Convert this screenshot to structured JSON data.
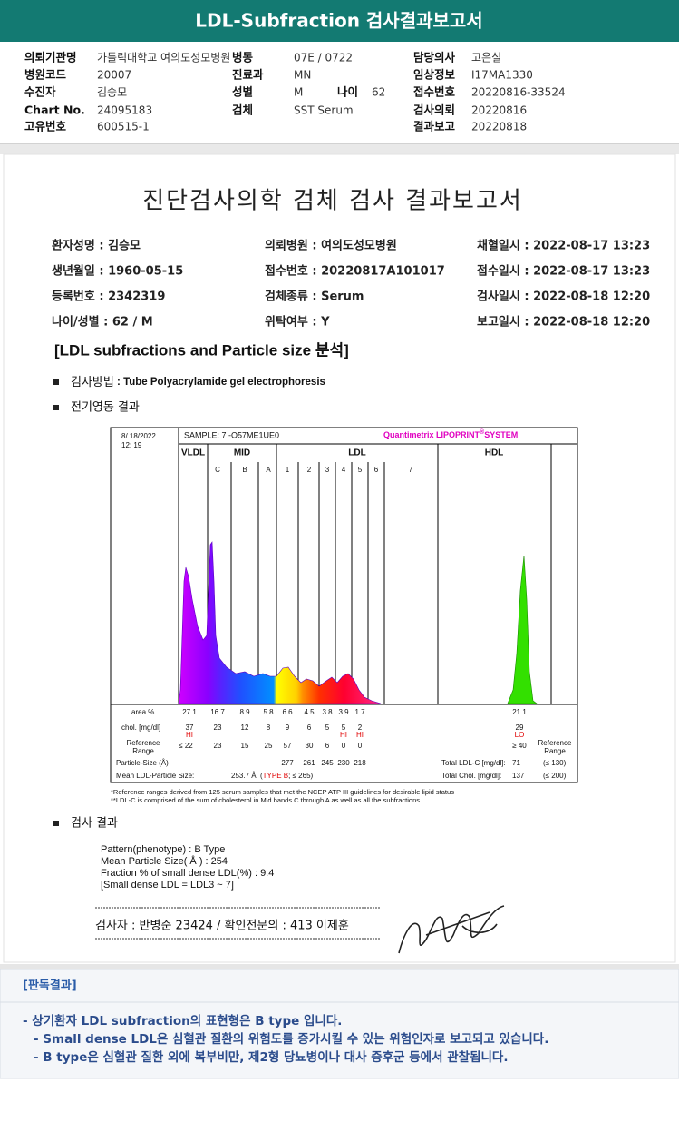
{
  "header": {
    "title": "LDL-Subfraction 검사결과보고서"
  },
  "info": {
    "rows": [
      [
        {
          "label": "의뢰기관명",
          "value": "가톨릭대학교 여의도성모병원"
        },
        {
          "label": "병동",
          "value": "07E / 0722"
        },
        {
          "label": "담당의사",
          "value": "고은실"
        }
      ],
      [
        {
          "label": "병원코드",
          "value": "20007"
        },
        {
          "label": "진료과",
          "value": "MN"
        },
        {
          "label": "임상정보",
          "value": "I17MA1330"
        }
      ],
      [
        {
          "label": "수진자",
          "value": "김승모"
        },
        {
          "label": "성별",
          "value": "M"
        },
        {
          "label": "나이",
          "value": "62"
        },
        {
          "label": "접수번호",
          "value": "20220816-33524"
        }
      ],
      [
        {
          "label": "Chart No.",
          "value": "24095183"
        },
        {
          "label": "검체",
          "value": "SST Serum"
        },
        {
          "label": "검사의뢰",
          "value": "20220816"
        }
      ],
      [
        {
          "label": "고유번호",
          "value": "600515-1"
        },
        {
          "label": "결과보고",
          "value": "20220818"
        }
      ]
    ]
  },
  "report": {
    "title": "진단검사의학 검체 검사 결과보고서",
    "fields": [
      [
        "환자성명 : 김승모",
        "의뢰병원 : 여의도성모병원",
        "채혈일시 : 2022-08-17 13:23"
      ],
      [
        "생년월일 : 1960-05-15",
        "접수번호 : 20220817A101017",
        "접수일시 : 2022-08-17 13:23"
      ],
      [
        "등록번호 : 2342319",
        "검체종류 : Serum",
        "검사일시 : 2022-08-18 12:20"
      ],
      [
        "나이/성별 : 62 / M",
        "위탁여부 : Y",
        "보고일시 : 2022-08-18 12:20"
      ]
    ],
    "section": "[LDL subfractions and Particle size 분석]",
    "method": {
      "label": "검사방법",
      "text": " : Tube Polyacrylamide gel electrophoresis"
    },
    "electro_heading": "전기영동 결과",
    "result_heading": "검사 결과",
    "results": [
      "Pattern(phenotype) : B Type",
      "Mean Particle Size( Å ) : 254",
      "Fraction % of small dense LDL(%) : 9.4",
      "[Small dense LDL = LDL3 ~ 7]"
    ],
    "signature_line": "검사자 : 반병준  23424  /  확인전문의 : 413  이제훈"
  },
  "electrophoresis": {
    "date": "8/ 18/2022",
    "time": "12: 19",
    "sample": "SAMPLE:   7 -O57ME1UE0",
    "brand": "Quantimetrix LIPOPRINT",
    "reg": "®",
    "system": "SYSTEM",
    "groups": [
      "VLDL",
      "MID",
      "LDL",
      "HDL"
    ],
    "row_labels": {
      "area": "area.%",
      "chol": "chol. [mg/dl]",
      "ref": [
        "Reference",
        "Range"
      ],
      "size": "Particle-Size (Å)",
      "mean": "Mean LDL-Particle Size:"
    },
    "columns": [
      {
        "label": null,
        "area": 27.1,
        "chol": 37,
        "flag": "HI",
        "ref": "≤ 22",
        "size": null
      },
      {
        "label": "C",
        "area": 16.7,
        "chol": 23,
        "flag": null,
        "ref": 23,
        "size": null
      },
      {
        "label": "B",
        "area": 8.9,
        "chol": 12,
        "flag": null,
        "ref": 15,
        "size": null
      },
      {
        "label": "A",
        "area": 5.8,
        "chol": 8,
        "flag": null,
        "ref": 25,
        "size": null
      },
      {
        "label": "1",
        "area": 6.6,
        "chol": 9,
        "flag": null,
        "ref": 57,
        "size": 277
      },
      {
        "label": "2",
        "area": 4.5,
        "chol": 6,
        "flag": null,
        "ref": 30,
        "size": 261
      },
      {
        "label": "3",
        "area": 3.8,
        "chol": 5,
        "flag": null,
        "ref": 6,
        "size": 245
      },
      {
        "label": "4",
        "area": 3.9,
        "chol": 5,
        "flag": "HI",
        "ref": 0,
        "size": 230
      },
      {
        "label": "5",
        "area": 1.7,
        "chol": 2,
        "flag": "HI",
        "ref": 0,
        "size": 218
      },
      {
        "label": "6",
        "area": null,
        "chol": null,
        "flag": null,
        "ref": null,
        "size": null
      },
      {
        "label": "7",
        "area": null,
        "chol": null,
        "flag": null,
        "ref": null,
        "size": null
      },
      {
        "label": null,
        "area": 21.1,
        "chol": 29,
        "flag": "LO",
        "ref": "≥ 40",
        "size": null
      }
    ],
    "mean_value": "253.7 Å",
    "mean_note": [
      "(",
      "TYPE B",
      "; ≤ 265)"
    ],
    "totals": [
      {
        "label": "Total LDL-C [mg/dl]:",
        "value": 71,
        "limit": "(≤ 130)"
      },
      {
        "label": "Total Chol. [mg/dl]:",
        "value": 137,
        "limit": "(≤ 200)"
      }
    ],
    "footnotes": [
      "*Reference ranges derived from 125 serum samples that met the NCEP ATP III guidelines for desirable lipid status",
      "**LDL-C is comprised of the sum of cholesterol in Mid bands C through A as well as all the subfractions"
    ]
  },
  "interpretation": {
    "title": "[판독결과]",
    "lines": [
      "- 상기환자 LDL subfraction의 표현형은 B type 입니다.",
      "-  Small dense LDL은 심혈관 질환의 위험도를 증가시킬 수 있는 위험인자로 보고되고 있습니다.",
      "-  B type은 심혈관 질환 외에 복부비만, 제2형 당뇨병이나 대사 증후군 등에서 관찰됩니다."
    ]
  }
}
